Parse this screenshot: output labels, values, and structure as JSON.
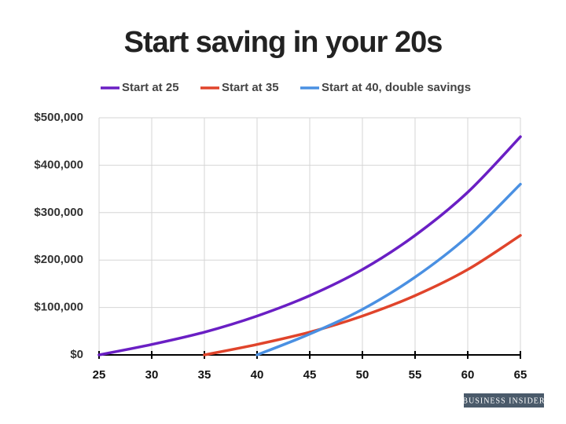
{
  "chart_data": {
    "type": "line",
    "title": "Start saving in your 20s",
    "source": "BUSINESS INSIDER",
    "x": [
      25,
      30,
      35,
      40,
      45,
      50,
      55,
      60,
      65
    ],
    "series": [
      {
        "name": "Start at 25",
        "color": "#6a1fc4",
        "values": [
          0,
          22000,
          48000,
          82000,
          125000,
          180000,
          252000,
          343000,
          460000
        ]
      },
      {
        "name": "Start at 35",
        "color": "#e0442b",
        "values": [
          null,
          null,
          0,
          22000,
          48000,
          82000,
          125000,
          180000,
          252000
        ]
      },
      {
        "name": "Start at 40, double savings",
        "color": "#4a90e2",
        "values": [
          null,
          null,
          null,
          0,
          44000,
          96000,
          164000,
          250000,
          360000
        ]
      }
    ],
    "xlim": [
      25,
      65
    ],
    "xticks": [
      25,
      30,
      35,
      40,
      45,
      50,
      55,
      60,
      65
    ],
    "ylim": [
      0,
      500000
    ],
    "yticks": [
      {
        "value": 0,
        "label": "$0"
      },
      {
        "value": 100000,
        "label": "$100,000"
      },
      {
        "value": 200000,
        "label": "$200,000"
      },
      {
        "value": 300000,
        "label": "$300,000"
      },
      {
        "value": 400000,
        "label": "$400,000"
      },
      {
        "value": 500000,
        "label": "$500,000"
      }
    ],
    "grid": true
  }
}
